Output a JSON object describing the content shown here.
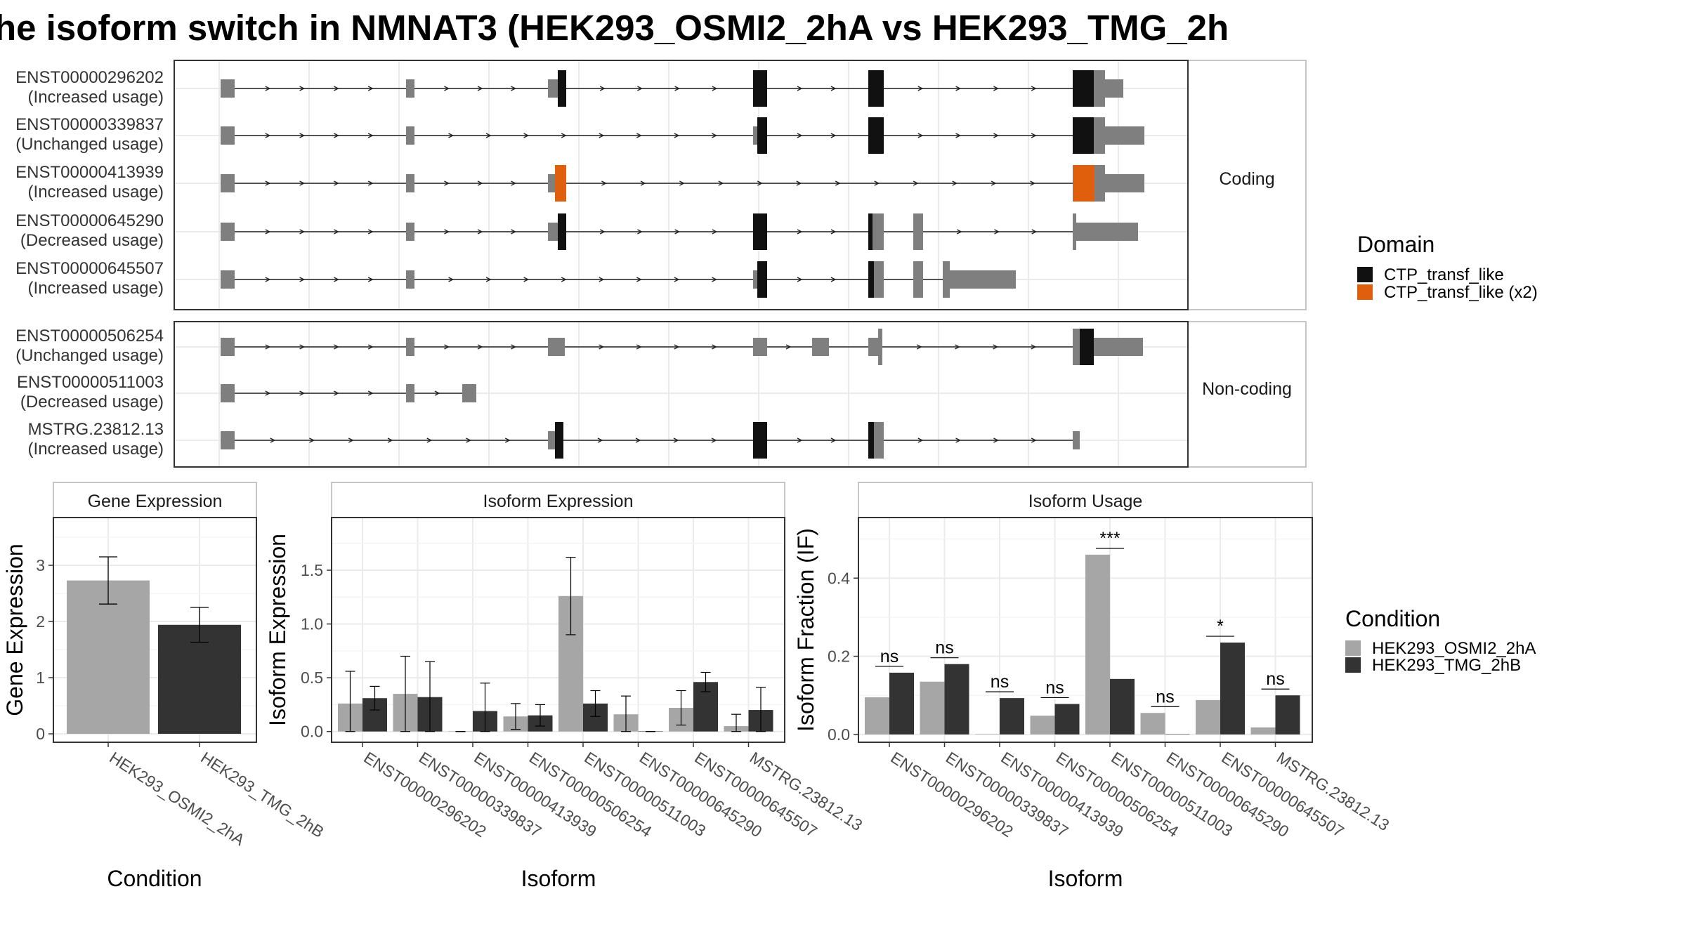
{
  "title": "he isoform switch in NMNAT3 (HEK293_OSMI2_2hA vs HEK293_TMG_2h",
  "colors": {
    "exon": "#7f7f7f",
    "domain": "#111111",
    "domain_x2": "#e05f0c",
    "cond1": "#a6a6a6",
    "cond2": "#333333",
    "grid": "#ebebeb"
  },
  "structure": {
    "panels": [
      {
        "label": "Coding",
        "transcripts": [
          {
            "id": "ENST00000296202",
            "status": "(Increased usage)"
          },
          {
            "id": "ENST00000339837",
            "status": "(Unchanged usage)"
          },
          {
            "id": "ENST00000413939",
            "status": "(Increased usage)"
          },
          {
            "id": "ENST00000645290",
            "status": "(Decreased usage)"
          },
          {
            "id": "ENST00000645507",
            "status": "(Increased usage)"
          }
        ]
      },
      {
        "label": "Non-coding",
        "transcripts": [
          {
            "id": "ENST00000506254",
            "status": "(Unchanged usage)"
          },
          {
            "id": "ENST00000511003",
            "status": "(Decreased usage)"
          },
          {
            "id": "MSTRG.23812.13",
            "status": "(Increased usage)"
          }
        ]
      }
    ]
  },
  "domain_legend": {
    "title": "Domain",
    "items": [
      {
        "label": "CTP_transf_like",
        "color": "#111111"
      },
      {
        "label": "CTP_transf_like (x2)",
        "color": "#e05f0c"
      }
    ]
  },
  "condition_legend": {
    "title": "Condition",
    "items": [
      {
        "label": "HEK293_OSMI2_2hA",
        "color": "#a6a6a6"
      },
      {
        "label": "HEK293_TMG_2hB",
        "color": "#333333"
      }
    ]
  },
  "chart_data": [
    {
      "type": "bar",
      "title": "Gene Expression",
      "xlabel": "Condition",
      "ylabel": "Gene Expression",
      "categories": [
        "HEK293_OSMI2_2hA",
        "HEK293_TMG_2hB"
      ],
      "values": [
        2.73,
        1.94
      ],
      "error": [
        [
          2.31,
          3.15
        ],
        [
          1.63,
          2.25
        ]
      ],
      "ylim": [
        -0.15,
        3.85
      ],
      "yticks": [
        0,
        1,
        2,
        3
      ]
    },
    {
      "type": "bar",
      "title": "Isoform Expression",
      "xlabel": "Isoform",
      "ylabel": "Isoform Expression",
      "categories": [
        "ENST00000296202",
        "ENST00000339837",
        "ENST00000413939",
        "ENST00000506254",
        "ENST00000511003",
        "ENST00000645290",
        "ENST00000645507",
        "MSTRG.23812.13"
      ],
      "ylim": [
        -0.1,
        1.99
      ],
      "yticks": [
        0.0,
        0.5,
        1.0,
        1.5
      ],
      "series": [
        {
          "name": "HEK293_OSMI2_2hA",
          "values": [
            0.26,
            0.35,
            0.0,
            0.14,
            1.26,
            0.16,
            0.22,
            0.05
          ],
          "error": [
            [
              0.0,
              0.56
            ],
            [
              0.0,
              0.7
            ],
            [
              0.0,
              0.0
            ],
            [
              0.02,
              0.26
            ],
            [
              0.9,
              1.62
            ],
            [
              0.0,
              0.33
            ],
            [
              0.06,
              0.38
            ],
            [
              0.0,
              0.16
            ]
          ]
        },
        {
          "name": "HEK293_TMG_2hB",
          "values": [
            0.31,
            0.32,
            0.19,
            0.15,
            0.26,
            0.0,
            0.46,
            0.2
          ],
          "error": [
            [
              0.2,
              0.42
            ],
            [
              0.0,
              0.65
            ],
            [
              0.0,
              0.45
            ],
            [
              0.05,
              0.25
            ],
            [
              0.14,
              0.38
            ],
            [
              0.0,
              0.0
            ],
            [
              0.37,
              0.55
            ],
            [
              0.0,
              0.41
            ]
          ]
        }
      ]
    },
    {
      "type": "bar",
      "title": "Isoform Usage",
      "xlabel": "Isoform",
      "ylabel": "Isoform Fraction (IF)",
      "categories": [
        "ENST00000296202",
        "ENST00000339837",
        "ENST00000413939",
        "ENST00000506254",
        "ENST00000511003",
        "ENST00000645290",
        "ENST00000645507",
        "MSTRG.23812.13"
      ],
      "ylim": [
        -0.02,
        0.555
      ],
      "yticks": [
        0.0,
        0.2,
        0.4
      ],
      "series": [
        {
          "name": "HEK293_OSMI2_2hA",
          "values": [
            0.095,
            0.135,
            0.0,
            0.048,
            0.46,
            0.055,
            0.088,
            0.018
          ]
        },
        {
          "name": "HEK293_TMG_2hB",
          "values": [
            0.158,
            0.18,
            0.093,
            0.078,
            0.142,
            0.0,
            0.235,
            0.1
          ]
        }
      ],
      "significance": [
        "ns",
        "ns",
        "ns",
        "ns",
        "***",
        "ns",
        "*",
        "ns"
      ]
    }
  ]
}
